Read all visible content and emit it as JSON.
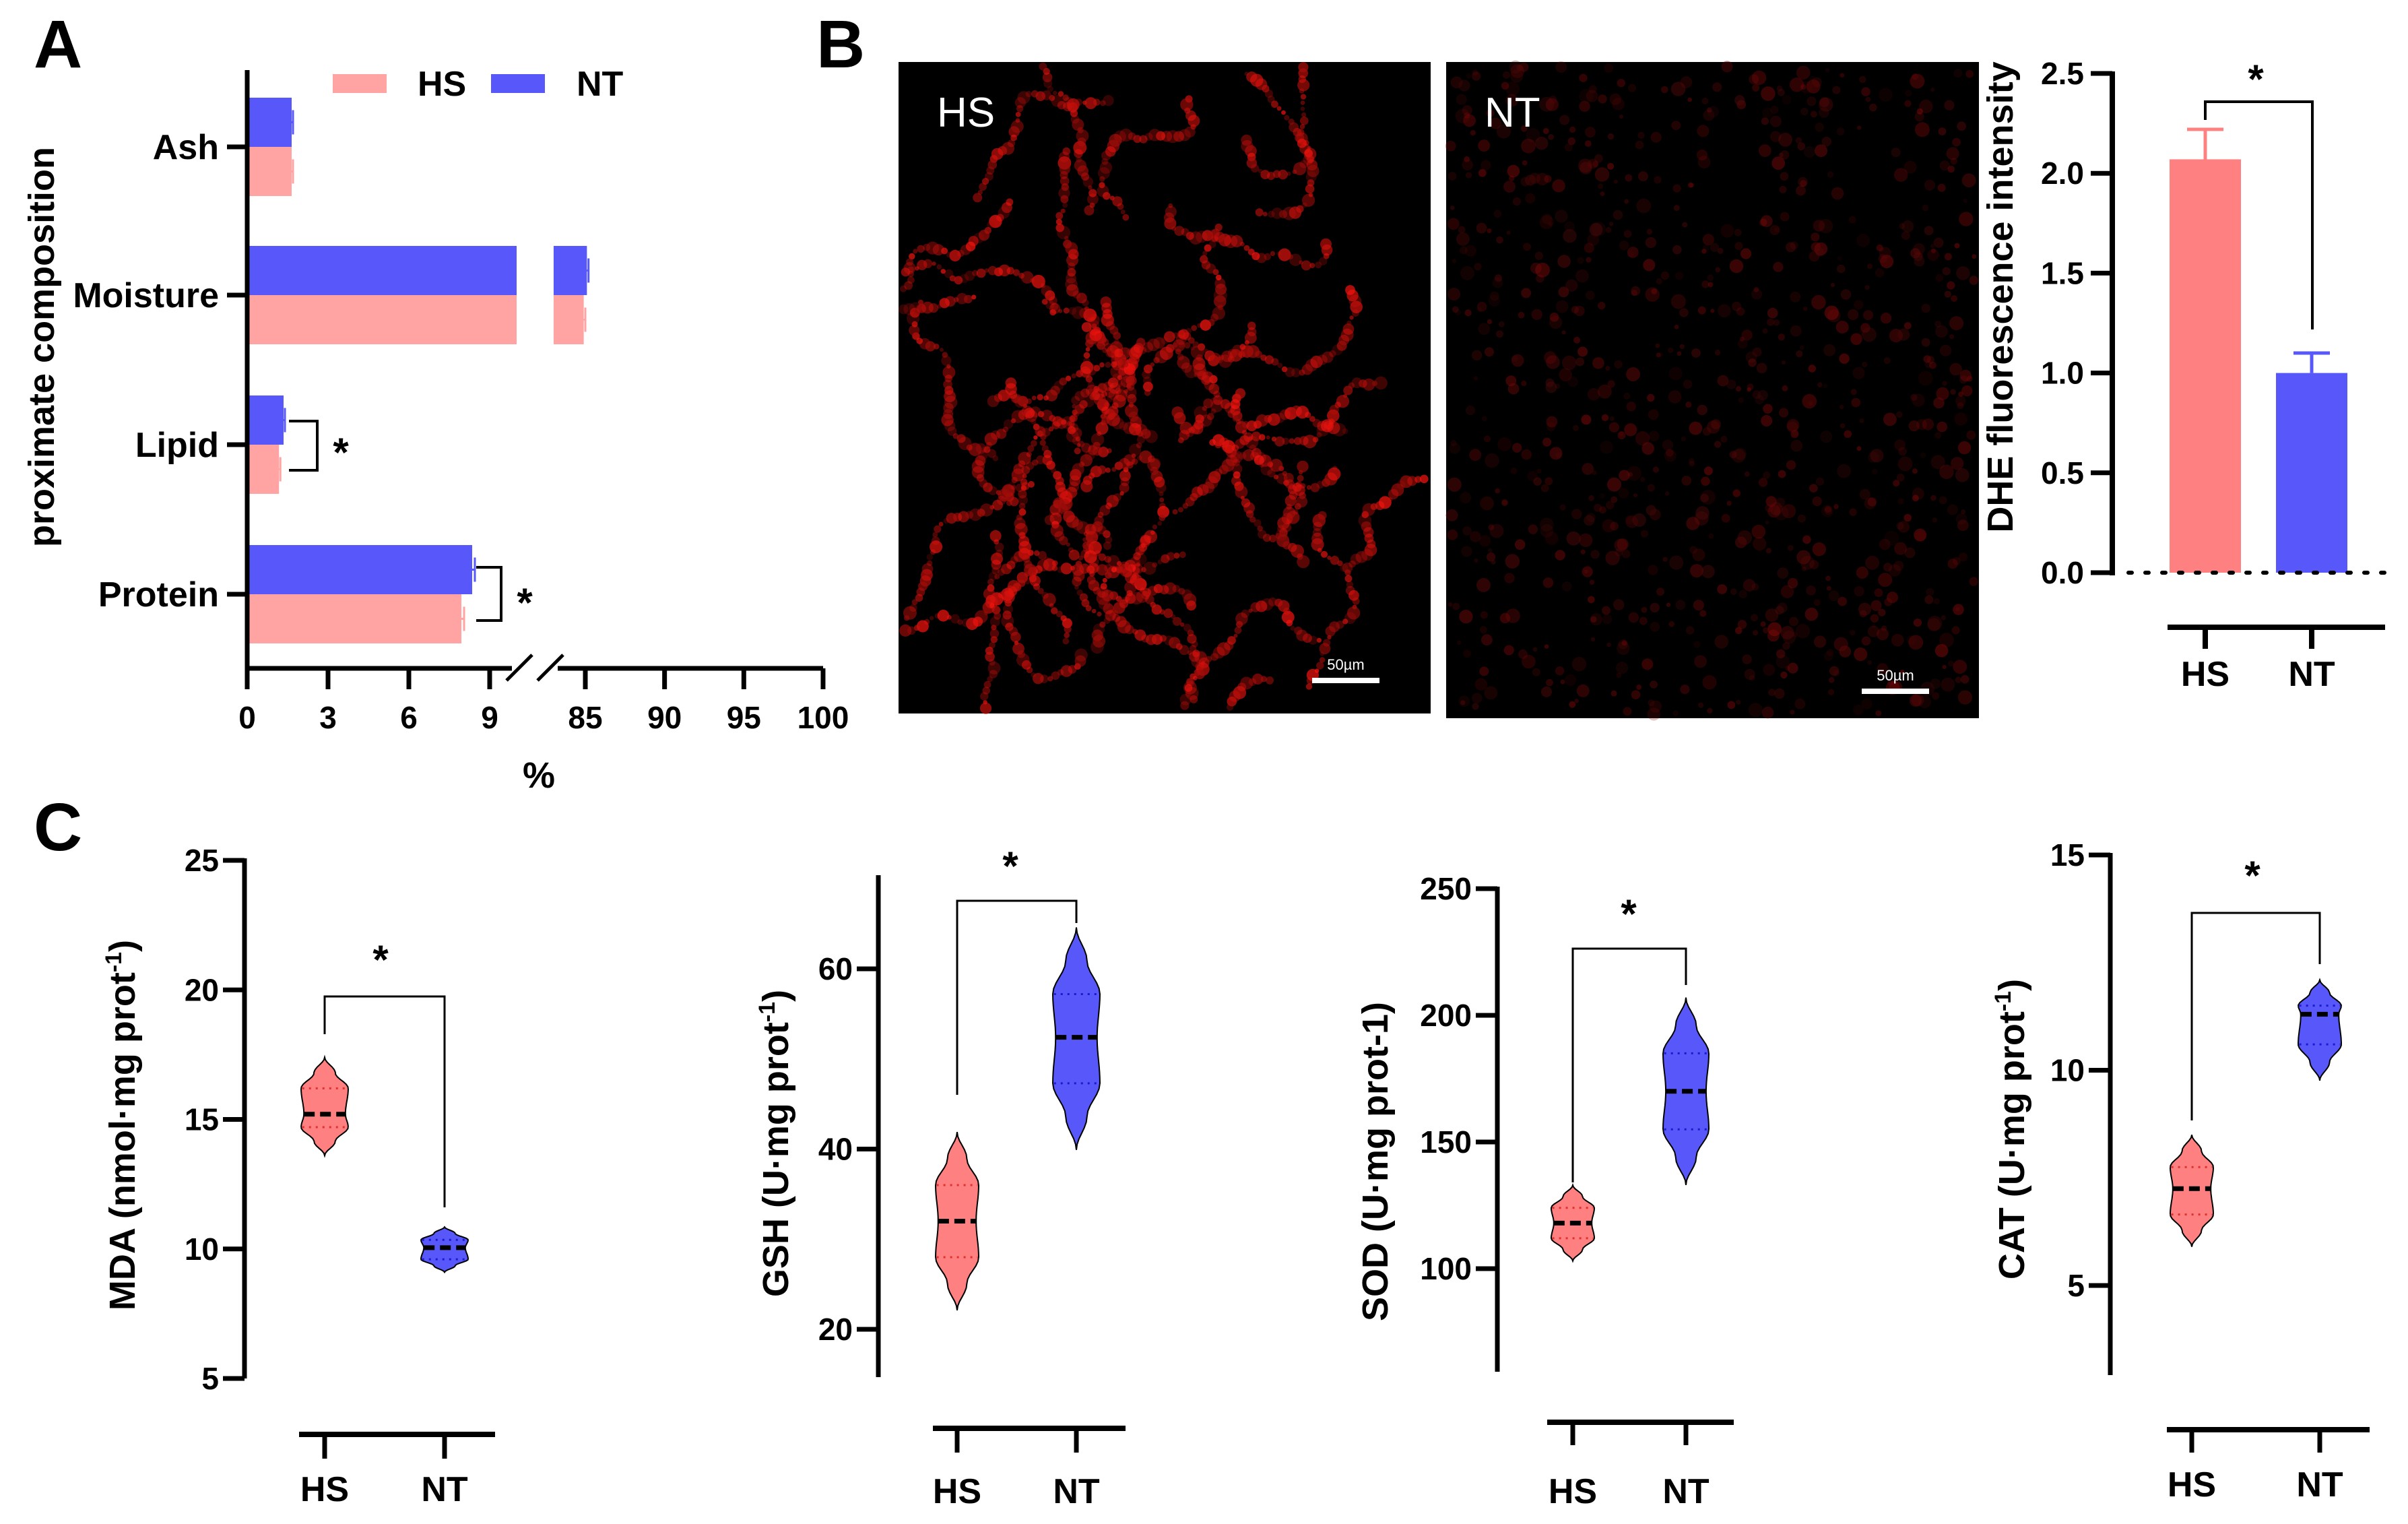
{
  "panels": {
    "a": "A",
    "b": "B",
    "c": "C"
  },
  "colors": {
    "HS": "#FF8080",
    "HS_light": "#FFA3A3",
    "NT": "#5858FA"
  },
  "chart_data": [
    {
      "id": "A",
      "type": "bar",
      "orientation": "horizontal",
      "ylabel": "proximate composition",
      "xlabel": "%",
      "categories": [
        "Ash",
        "Moisture",
        "Lipid",
        "Protein"
      ],
      "legend": {
        "position": "top",
        "entries": [
          "HS",
          "NT"
        ]
      },
      "series": [
        {
          "name": "HS",
          "values": [
            1.65,
            84.9,
            1.18,
            7.95
          ],
          "errors": [
            0.05,
            0.1,
            0.05,
            0.1
          ]
        },
        {
          "name": "NT",
          "values": [
            1.65,
            85.1,
            1.35,
            8.35
          ],
          "errors": [
            0.05,
            0.1,
            0.05,
            0.1
          ]
        }
      ],
      "xaxis_segments": [
        [
          0,
          10
        ],
        [
          83,
          100
        ]
      ],
      "xticks": [
        "0",
        "3",
        "6",
        "9",
        "85",
        "90",
        "95",
        "100"
      ],
      "significance": [
        {
          "category": "Lipid",
          "label": "*"
        },
        {
          "category": "Protein",
          "label": "*"
        }
      ]
    },
    {
      "id": "B",
      "type": "bar",
      "ylabel": "DHE fluorescence intensity",
      "categories": [
        "HS",
        "NT"
      ],
      "values": [
        2.07,
        1.0
      ],
      "errors": [
        0.15,
        0.1
      ],
      "ylim": [
        0,
        2.5
      ],
      "yticks": [
        "0.0",
        "0.5",
        "1.0",
        "1.5",
        "2.0",
        "2.5"
      ],
      "significance": "*"
    },
    {
      "id": "C-MDA",
      "type": "violin",
      "ylabel_main": "MDA (nmol·mg prot",
      "ylabel_sup": "-1",
      "ylabel_end": ")",
      "categories": [
        "HS",
        "NT"
      ],
      "yticks": [
        "5",
        "10",
        "15",
        "20",
        "25"
      ],
      "ylim": [
        5,
        25
      ],
      "groups": [
        {
          "name": "HS",
          "min": 13.6,
          "q1": 14.7,
          "median": 15.2,
          "q3": 16.2,
          "max": 17.4
        },
        {
          "name": "NT",
          "min": 9.1,
          "q1": 9.6,
          "median": 10.05,
          "q3": 10.35,
          "max": 10.85
        }
      ],
      "significance": "*"
    },
    {
      "id": "C-GSH",
      "type": "violin",
      "ylabel_main": "GSH (U·mg prot",
      "ylabel_sup": "-1",
      "ylabel_end": ")",
      "categories": [
        "HS",
        "NT"
      ],
      "yticks": [
        "20",
        "40",
        "60"
      ],
      "ylim": [
        15,
        70
      ],
      "groups": [
        {
          "name": "HS",
          "min": 22.1,
          "q1": 28.0,
          "median": 32.0,
          "q3": 36.0,
          "max": 41.9
        },
        {
          "name": "NT",
          "min": 39.9,
          "q1": 47.3,
          "median": 52.4,
          "q3": 57.2,
          "max": 64.6
        }
      ],
      "significance": "*"
    },
    {
      "id": "C-SOD",
      "type": "violin",
      "ylabel_main": "SOD (U·mg prot-1)",
      "ylabel_sup": "",
      "ylabel_end": "",
      "categories": [
        "HS",
        "NT"
      ],
      "yticks": [
        "100",
        "150",
        "200",
        "250"
      ],
      "ylim": [
        60,
        250
      ],
      "groups": [
        {
          "name": "HS",
          "min": 103,
          "q1": 112,
          "median": 118,
          "q3": 124,
          "max": 133
        },
        {
          "name": "NT",
          "min": 133,
          "q1": 155,
          "median": 170,
          "q3": 185,
          "max": 207
        }
      ],
      "significance": "*"
    },
    {
      "id": "C-CAT",
      "type": "violin",
      "ylabel_main": "CAT (U·mg prot",
      "ylabel_sup": "-1",
      "ylabel_end": ")",
      "categories": [
        "HS",
        "NT"
      ],
      "yticks": [
        "5",
        "10",
        "15"
      ],
      "ylim": [
        3,
        15
      ],
      "groups": [
        {
          "name": "HS",
          "min": 5.9,
          "q1": 6.65,
          "median": 7.25,
          "q3": 7.75,
          "max": 8.5
        },
        {
          "name": "NT",
          "min": 9.76,
          "q1": 10.6,
          "median": 11.3,
          "q3": 11.5,
          "max": 12.1
        }
      ],
      "significance": "*"
    }
  ],
  "images": [
    {
      "label": "HS",
      "scale_bar": "50µm"
    },
    {
      "label": "NT",
      "scale_bar": "50µm"
    }
  ]
}
